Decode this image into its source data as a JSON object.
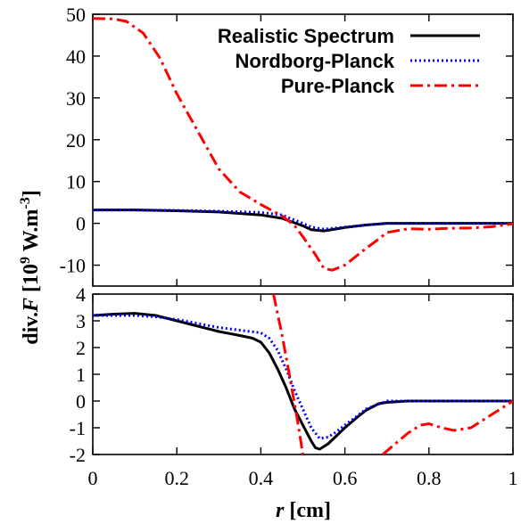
{
  "chart_data": {
    "type": "line",
    "xlabel_italic": "r",
    "xlabel_unit": "[cm]",
    "ylabel_prefix": "div.",
    "ylabel_italic": "F",
    "ylabel_unit_a": " [10",
    "ylabel_sup1": "9",
    "ylabel_unit_b": " W.m",
    "ylabel_sup2": "-3",
    "ylabel_unit_c": "]",
    "xlim": [
      0,
      1
    ],
    "x_ticks": [
      0,
      0.2,
      0.4,
      0.6,
      0.8,
      1
    ],
    "x_tick_labels": [
      "0",
      "0.2",
      "0.4",
      "0.6",
      "0.8",
      "1"
    ],
    "grid": false,
    "legend_position": "top-right",
    "series": [
      {
        "name": "Realistic Spectrum",
        "color": "#000000",
        "dash": "solid"
      },
      {
        "name": "Nordborg-Planck",
        "color": "#0000ff",
        "dash": "dotted"
      },
      {
        "name": "Pure-Planck",
        "color": "#ff0000",
        "dash": "dash-dot"
      }
    ],
    "panels": [
      {
        "id": "top",
        "ylim": [
          -15,
          50
        ],
        "y_ticks": [
          -10,
          0,
          10,
          20,
          30,
          40,
          50
        ],
        "y_tick_labels": [
          "-10",
          "0",
          "10",
          "20",
          "30",
          "40",
          "50"
        ],
        "series": [
          {
            "name": "Realistic Spectrum",
            "x": [
              0,
              0.1,
              0.2,
              0.3,
              0.4,
              0.45,
              0.5,
              0.52,
              0.55,
              0.6,
              0.65,
              0.7,
              0.8,
              0.9,
              1.0
            ],
            "y": [
              3.2,
              3.2,
              3.0,
              2.7,
              2.0,
              1.2,
              -0.6,
              -1.5,
              -1.8,
              -1.0,
              -0.4,
              0,
              0,
              0,
              0
            ]
          },
          {
            "name": "Nordborg-Planck",
            "x": [
              0,
              0.1,
              0.2,
              0.3,
              0.4,
              0.45,
              0.5,
              0.52,
              0.55,
              0.6,
              0.65,
              0.7,
              0.8,
              0.9,
              1.0
            ],
            "y": [
              3.2,
              3.2,
              3.1,
              2.9,
              2.6,
              2.0,
              0,
              -0.9,
              -1.4,
              -0.9,
              -0.4,
              0,
              0,
              0,
              0
            ]
          },
          {
            "name": "Pure-Planck",
            "x": [
              0,
              0.05,
              0.08,
              0.12,
              0.16,
              0.2,
              0.25,
              0.3,
              0.35,
              0.4,
              0.45,
              0.48,
              0.5,
              0.53,
              0.55,
              0.57,
              0.6,
              0.65,
              0.68,
              0.7,
              0.75,
              0.8,
              0.85,
              0.9,
              0.95,
              1.0
            ],
            "y": [
              49,
              48.9,
              48.3,
              45.5,
              39.5,
              31,
              22,
              13,
              7.5,
              4.5,
              1.8,
              -0.5,
              -3.2,
              -7.5,
              -10.8,
              -11.2,
              -10,
              -6,
              -3.8,
              -2.2,
              -1.3,
              -1.4,
              -1.2,
              -1.1,
              -0.8,
              -0.1
            ]
          }
        ]
      },
      {
        "id": "bottom",
        "ylim": [
          -2,
          4
        ],
        "y_ticks": [
          -2,
          -1,
          0,
          1,
          2,
          3,
          4
        ],
        "y_tick_labels": [
          "-2",
          "-1",
          "0",
          "1",
          "2",
          "3",
          "4"
        ],
        "series": [
          {
            "name": "Realistic Spectrum",
            "x": [
              0,
              0.05,
              0.1,
              0.15,
              0.2,
              0.25,
              0.3,
              0.35,
              0.38,
              0.4,
              0.42,
              0.44,
              0.46,
              0.48,
              0.5,
              0.52,
              0.53,
              0.54,
              0.56,
              0.58,
              0.6,
              0.63,
              0.65,
              0.68,
              0.7,
              0.75,
              0.8,
              0.9,
              1.0
            ],
            "y": [
              3.2,
              3.25,
              3.28,
              3.2,
              3.0,
              2.8,
              2.6,
              2.45,
              2.35,
              2.2,
              1.8,
              1.2,
              0.5,
              -0.3,
              -0.9,
              -1.5,
              -1.75,
              -1.8,
              -1.6,
              -1.3,
              -1.0,
              -0.6,
              -0.35,
              -0.1,
              -0.05,
              0,
              0,
              0,
              0
            ]
          },
          {
            "name": "Nordborg-Planck",
            "x": [
              0,
              0.05,
              0.1,
              0.15,
              0.2,
              0.25,
              0.3,
              0.35,
              0.4,
              0.42,
              0.44,
              0.46,
              0.48,
              0.5,
              0.52,
              0.54,
              0.56,
              0.58,
              0.6,
              0.63,
              0.65,
              0.7,
              0.75,
              0.8,
              0.9,
              1.0
            ],
            "y": [
              3.2,
              3.2,
              3.2,
              3.15,
              3.05,
              2.9,
              2.75,
              2.65,
              2.55,
              2.35,
              1.9,
              1.2,
              0.4,
              -0.3,
              -1.0,
              -1.4,
              -1.35,
              -1.15,
              -0.9,
              -0.55,
              -0.3,
              0,
              0,
              0,
              0,
              0
            ]
          },
          {
            "name": "Pure-Planck",
            "x": [
              0.43,
              0.45,
              0.47,
              0.49,
              0.5
            ],
            "y": [
              4.0,
              2.5,
              0.8,
              -1.0,
              -2.0
            ],
            "x2": [
              0.69,
              0.72,
              0.75,
              0.78,
              0.8,
              0.83,
              0.86,
              0.9,
              0.95,
              1.0
            ],
            "y2": [
              -2.0,
              -1.6,
              -1.2,
              -0.9,
              -0.85,
              -1.0,
              -1.1,
              -1.0,
              -0.5,
              0
            ]
          }
        ]
      }
    ]
  }
}
